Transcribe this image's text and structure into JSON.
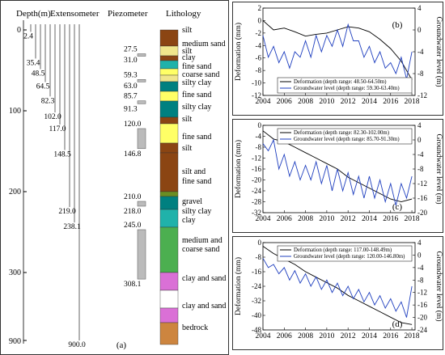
{
  "left": {
    "headers": {
      "depth": "Depth(m)",
      "extensometer": "Extensometer",
      "piezometer": "Piezometer",
      "lithology": "Lithology"
    },
    "depth_ticks": [
      "0",
      "100",
      "200",
      "300",
      "900"
    ],
    "panel_label": "(a)",
    "ext_labels": [
      "2.4",
      "35.4",
      "48.5",
      "64.5",
      "82.3",
      "102.0",
      "117.0",
      "148.5",
      "219.0",
      "238.1",
      "900.0"
    ],
    "piezo_labels": [
      "27.5",
      "31.0",
      "59.3",
      "63.0",
      "85.7",
      "91.3",
      "120.0",
      "146.8",
      "210.0",
      "218.0",
      "245.0",
      "308.1"
    ],
    "litho_labels": [
      "silt",
      "medium sand",
      "silt",
      "clay",
      "fine sand",
      "coarse sand",
      "silty clay",
      "fine sand",
      "silty clay",
      "silt",
      "fine sand",
      "silt",
      "silt and",
      "fine sand",
      "gravel",
      "silty clay",
      "clay",
      "medium and",
      "coarse sand",
      "clay and sand",
      "clay and sand",
      "bedrock"
    ],
    "colors": {
      "silt": "#8b4513",
      "medium_sand": "#f0e68c",
      "clay": "#20b2aa",
      "fine_sand": "#ffff66",
      "silty_clay": "#008080",
      "gravel": "#6b8e23",
      "medium_coarse_sand": "#4caf50",
      "clay_and_sand": "#da70d6",
      "bedrock": "#cd853f"
    }
  },
  "chart_data": [
    {
      "type": "line",
      "panel_label": "(b)",
      "xlabel": "",
      "ylabel": "Deformation (mm)",
      "y2label": "Groundwater level (m)",
      "xlim": [
        2004,
        2018.3
      ],
      "ylim": [
        -12,
        2
      ],
      "y2lim": [
        -12,
        4
      ],
      "x_ticks": [
        2004,
        2006,
        2008,
        2010,
        2012,
        2014,
        2016,
        2018
      ],
      "y_ticks": [
        -12,
        -10,
        -8,
        -6,
        -4,
        -2,
        0,
        2
      ],
      "y2_ticks": [
        -12,
        -8,
        -4,
        0,
        4
      ],
      "legend": "bottom-right",
      "series": [
        {
          "name": "Deformation (depth range: 48.50-64.50m)",
          "axis": "left",
          "color": "#000000",
          "x": [
            2004,
            2005,
            2006,
            2007,
            2008,
            2009,
            2010,
            2011,
            2012,
            2013,
            2014,
            2015,
            2016,
            2017,
            2017.5,
            2018
          ],
          "y": [
            0,
            -1.5,
            -1.2,
            -1.8,
            -2.5,
            -2.2,
            -2.0,
            -1.5,
            -1.0,
            -1.2,
            -1.8,
            -3.0,
            -4.5,
            -6.5,
            -8.0,
            -9.5
          ]
        },
        {
          "name": "Groundwater level (depth range: 59.30-63.40m)",
          "axis": "right",
          "color": "#1f3fbf",
          "x": [
            2004,
            2004.5,
            2005,
            2005.5,
            2006,
            2006.5,
            2007,
            2007.5,
            2008,
            2008.5,
            2009,
            2009.5,
            2010,
            2010.5,
            2011,
            2011.5,
            2012,
            2012.5,
            2013,
            2013.5,
            2014,
            2014.5,
            2015,
            2015.5,
            2016,
            2016.5,
            2017,
            2017.5,
            2018
          ],
          "y": [
            -1,
            -5,
            -3,
            -6,
            -4,
            -7,
            -4,
            -5,
            -2,
            -5,
            -1,
            -4,
            -1,
            -3,
            0,
            -3,
            1,
            -2,
            -2,
            -5,
            -3,
            -6,
            -4,
            -7,
            -6,
            -8,
            -5,
            -9,
            -4
          ]
        }
      ]
    },
    {
      "type": "line",
      "panel_label": "(c)",
      "xlabel": "",
      "ylabel": "Deformation (mm)",
      "y2label": "Groundwater level (m)",
      "xlim": [
        2004,
        2018.3
      ],
      "ylim": [
        -32,
        0
      ],
      "y2lim": [
        -20,
        4
      ],
      "x_ticks": [
        2004,
        2006,
        2008,
        2010,
        2012,
        2014,
        2016,
        2018
      ],
      "y_ticks": [
        -32,
        -28,
        -24,
        -20,
        -16,
        -12,
        -8,
        -4,
        0
      ],
      "y2_ticks": [
        -20,
        -16,
        -12,
        -8,
        -4,
        0,
        4
      ],
      "legend": "top-right",
      "series": [
        {
          "name": "Deformation (depth range: 82.30-102.00m)",
          "axis": "left",
          "color": "#000000",
          "x": [
            2004,
            2005,
            2006,
            2007,
            2008,
            2009,
            2010,
            2011,
            2012,
            2013,
            2014,
            2015,
            2016,
            2017,
            2018
          ],
          "y": [
            -2,
            -5,
            -6,
            -8,
            -10,
            -12,
            -14,
            -16,
            -19,
            -21,
            -23,
            -25,
            -27,
            -28,
            -27
          ]
        },
        {
          "name": "Groundwater level (depth range: 85.70-91.30m)",
          "axis": "right",
          "color": "#1f3fbf",
          "x": [
            2004,
            2004.5,
            2005,
            2005.5,
            2006,
            2006.5,
            2007,
            2007.5,
            2008,
            2008.5,
            2009,
            2009.5,
            2010,
            2010.5,
            2011,
            2011.5,
            2012,
            2012.5,
            2013,
            2013.5,
            2014,
            2014.5,
            2015,
            2015.5,
            2016,
            2016.5,
            2017,
            2017.5,
            2018
          ],
          "y": [
            -1,
            -3,
            0,
            -8,
            -4,
            -10,
            -6,
            -11,
            -7,
            -11,
            -6,
            -12,
            -7,
            -14,
            -8,
            -14,
            -9,
            -15,
            -10,
            -16,
            -10,
            -16,
            -11,
            -17,
            -12,
            -18,
            -12,
            -16,
            -10
          ]
        }
      ]
    },
    {
      "type": "line",
      "panel_label": "(d)",
      "xlabel": "",
      "ylabel": "Deformation (mm)",
      "y2label": "Groundwater level (m)",
      "xlim": [
        2004,
        2018.3
      ],
      "ylim": [
        -48,
        0
      ],
      "y2lim": [
        -24,
        4
      ],
      "x_ticks": [
        2004,
        2006,
        2008,
        2010,
        2012,
        2014,
        2016,
        2018
      ],
      "y_ticks": [
        -48,
        -40,
        -32,
        -24,
        -16,
        -8,
        0
      ],
      "y2_ticks": [
        -24,
        -20,
        -16,
        -12,
        -8,
        -4,
        0,
        4
      ],
      "legend": "top-right",
      "series": [
        {
          "name": "Deformation (depth range: 117.00-148.49m)",
          "axis": "left",
          "color": "#000000",
          "x": [
            2004,
            2005,
            2006,
            2007,
            2008,
            2009,
            2010,
            2011,
            2012,
            2013,
            2014,
            2015,
            2016,
            2017,
            2018
          ],
          "y": [
            -2,
            -6,
            -9,
            -12,
            -16,
            -19,
            -22,
            -25,
            -29,
            -32,
            -35,
            -38,
            -41,
            -44,
            -45
          ]
        },
        {
          "name": "Groundwater level (depth range: 120.00-146.80m)",
          "axis": "right",
          "color": "#1f3fbf",
          "x": [
            2004,
            2004.5,
            2005,
            2005.5,
            2006,
            2006.5,
            2007,
            2007.5,
            2008,
            2008.5,
            2009,
            2009.5,
            2010,
            2010.5,
            2011,
            2011.5,
            2012,
            2012.5,
            2013,
            2013.5,
            2014,
            2014.5,
            2015,
            2015.5,
            2016,
            2016.5,
            2017,
            2017.5,
            2018
          ],
          "y": [
            -1,
            -4,
            -3,
            -6,
            -4,
            -8,
            -5,
            -9,
            -6,
            -10,
            -7,
            -11,
            -8,
            -12,
            -9,
            -13,
            -10,
            -14,
            -11,
            -15,
            -12,
            -16,
            -13,
            -17,
            -14,
            -18,
            -15,
            -20,
            -10
          ]
        }
      ]
    }
  ]
}
